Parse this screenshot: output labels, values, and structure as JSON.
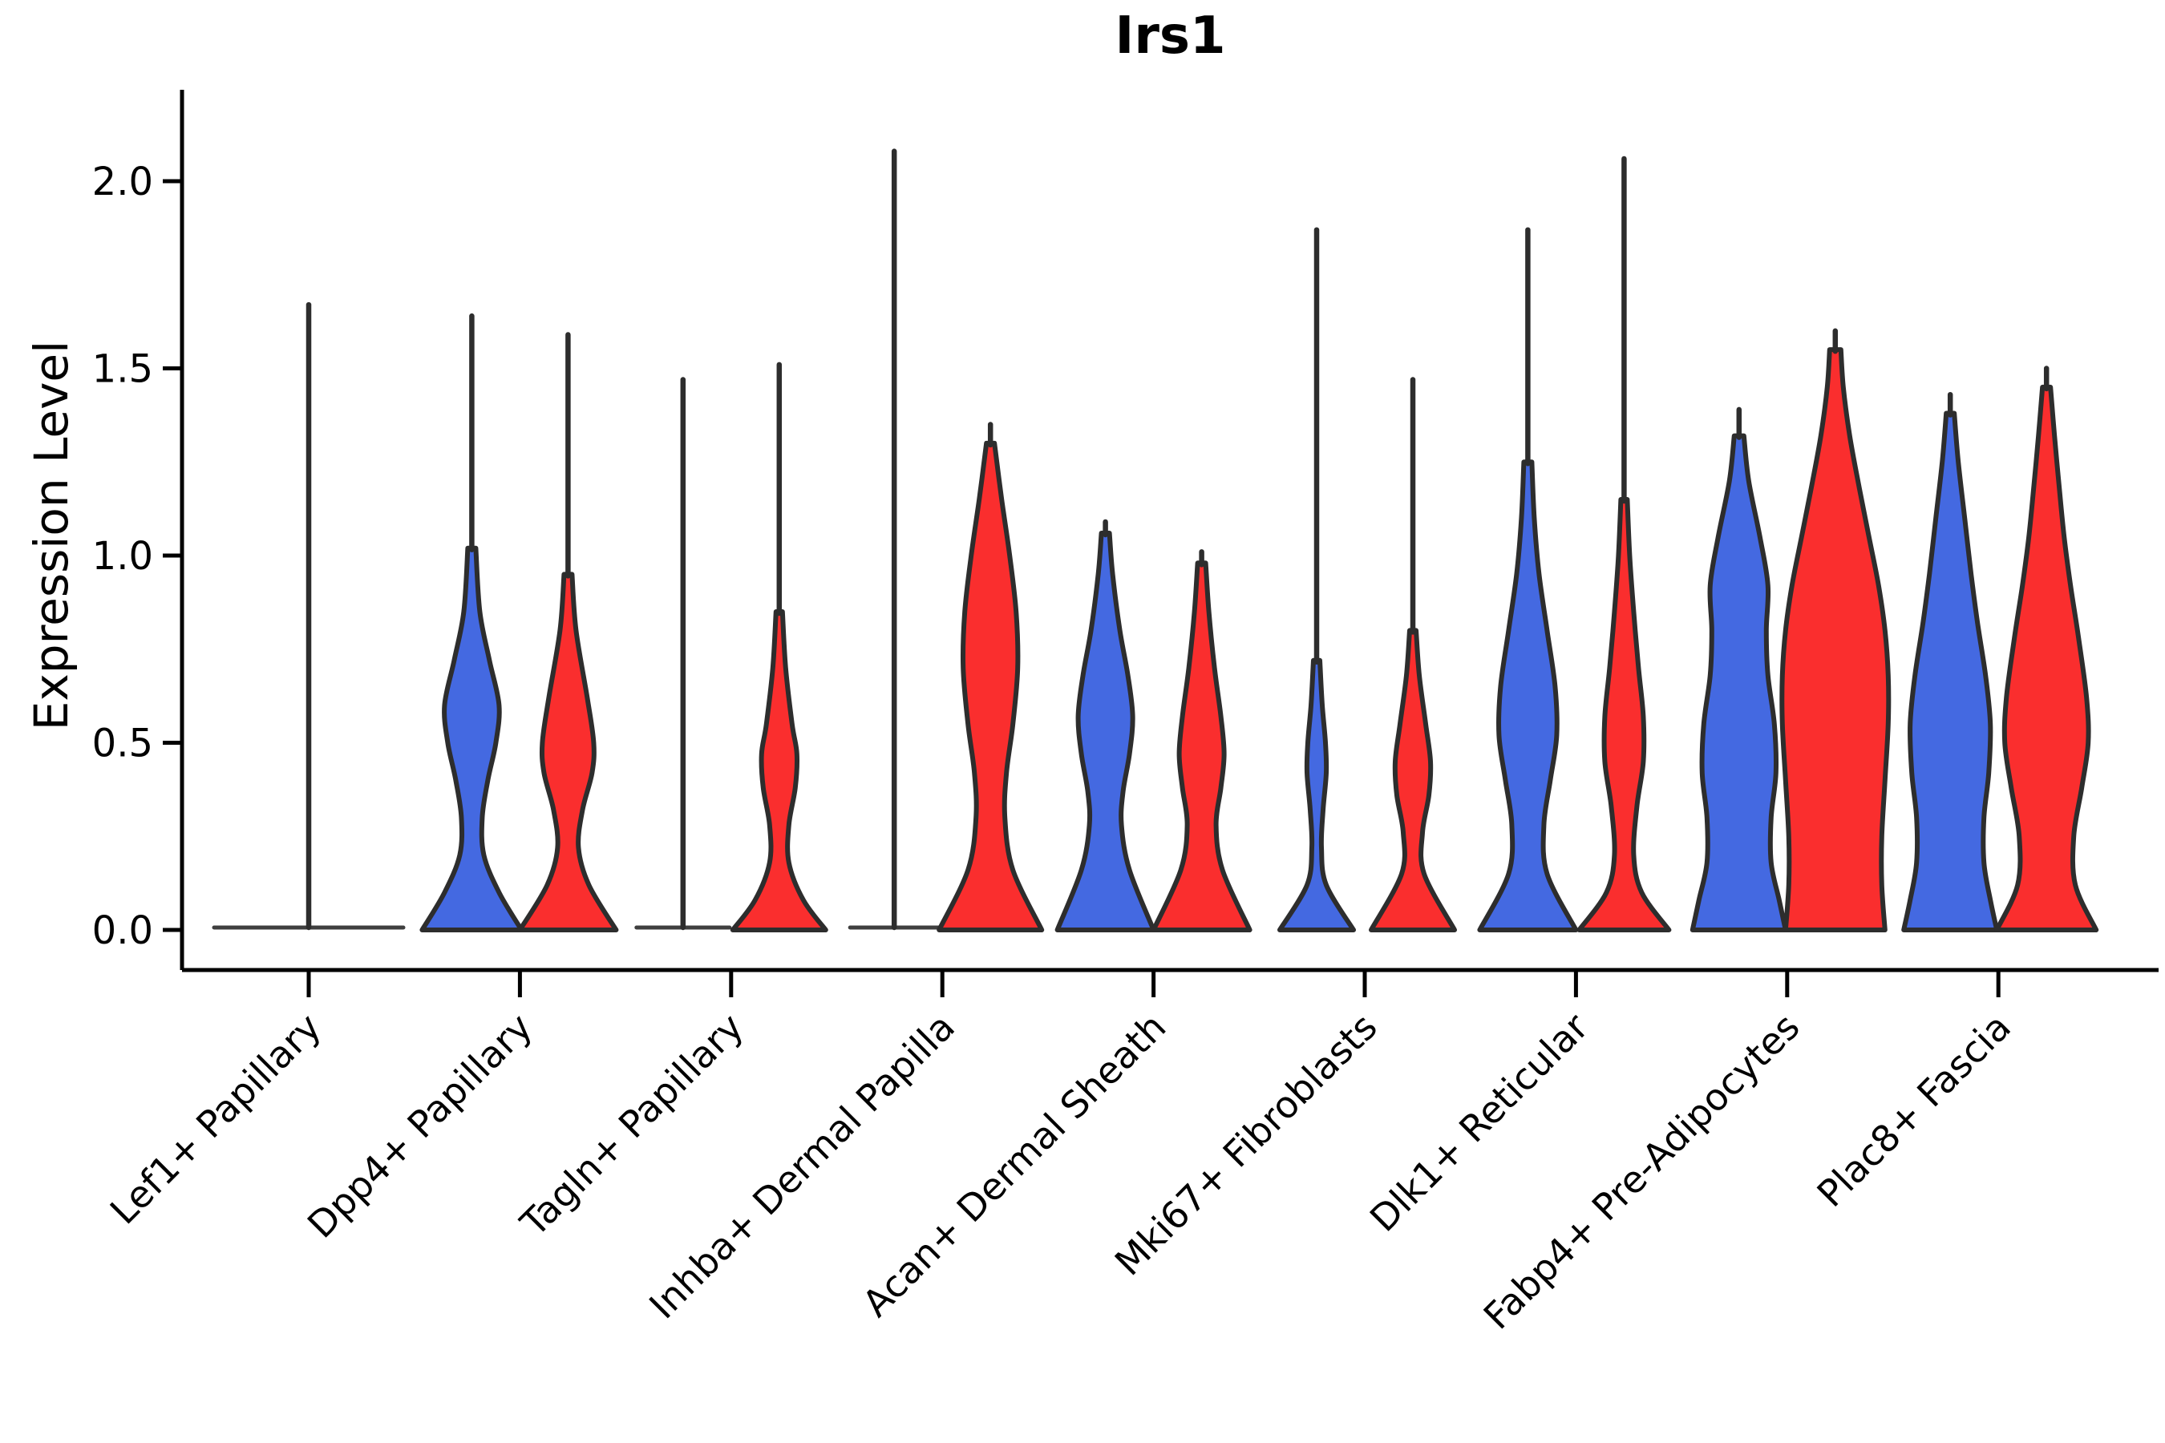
{
  "title": "Irs1",
  "y_axis": {
    "label": "Expression Level",
    "tick_labels": [
      "0.0",
      "0.5",
      "1.0",
      "1.5",
      "2.0"
    ],
    "tick_values": [
      0.0,
      0.5,
      1.0,
      1.5,
      2.0
    ]
  },
  "x_axis": {
    "categories": [
      "Lef1+ Papillary",
      "Dpp4+ Papillary",
      "Tagln+ Papillary",
      "Inhba+ Dermal Papilla",
      "Acan+ Dermal Sheath",
      "Mki67+ Fibroblasts",
      "Dlk1+ Reticular",
      "Fabp4+ Pre-Adipocytes",
      "Plac8+ Fascia"
    ]
  },
  "colors": {
    "group_blue": "#4469E1",
    "group_red": "#FA2E2E",
    "outline": "#2D2D2D",
    "flat_line": "#3F3F3F",
    "axis": "#000000"
  },
  "chart_data": {
    "type": "violin",
    "title": "Irs1",
    "xlabel": "",
    "ylabel": "Expression Level",
    "ylim": [
      0,
      2.15
    ],
    "yticks": [
      0.0,
      0.5,
      1.0,
      1.5,
      2.0
    ],
    "grid": false,
    "legend_position": "none",
    "categories": [
      "Lef1+ Papillary",
      "Dpp4+ Papillary",
      "Tagln+ Papillary",
      "Inhba+ Dermal Papilla",
      "Acan+ Dermal Sheath",
      "Mki67+ Fibroblasts",
      "Dlk1+ Reticular",
      "Fabp4+ Pre-Adipocytes",
      "Plac8+ Fascia"
    ],
    "groups": [
      {
        "name": "condition-blue",
        "color": "#4469E1"
      },
      {
        "name": "condition-red",
        "color": "#FA2E2E"
      }
    ],
    "profile_units": "pairs of [expression_value, half_width_px]; half_width is the drawn kernel-density half width",
    "violins": [
      {
        "category": "Lef1+ Papillary",
        "split": [
          {
            "group": "all",
            "type": "flat",
            "color": "#3F3F3F",
            "flat_halfwidth": 118,
            "max": 1.67,
            "align": "center"
          }
        ]
      },
      {
        "category": "Dpp4+ Papillary",
        "split": [
          {
            "group": "condition-blue",
            "type": "density",
            "color": "#4469E1",
            "max": 1.64,
            "profile": [
              [
                1.02,
                5
              ],
              [
                0.85,
                10
              ],
              [
                0.72,
                22
              ],
              [
                0.6,
                34
              ],
              [
                0.5,
                30
              ],
              [
                0.4,
                20
              ],
              [
                0.3,
                13
              ],
              [
                0.2,
                15
              ],
              [
                0.1,
                34
              ],
              [
                0,
                62
              ]
            ]
          },
          {
            "group": "condition-red",
            "type": "density",
            "color": "#FA2E2E",
            "max": 1.59,
            "profile": [
              [
                0.95,
                5
              ],
              [
                0.8,
                10
              ],
              [
                0.62,
                24
              ],
              [
                0.5,
                32
              ],
              [
                0.42,
                30
              ],
              [
                0.32,
                18
              ],
              [
                0.22,
                13
              ],
              [
                0.12,
                26
              ],
              [
                0,
                60
              ]
            ]
          }
        ]
      },
      {
        "category": "Tagln+ Papillary",
        "split": [
          {
            "group": "condition-blue",
            "type": "flat",
            "color": "#3F3F3F",
            "flat_halfwidth": 58,
            "max": 1.47
          },
          {
            "group": "condition-red",
            "type": "density",
            "color": "#FA2E2E",
            "max": 1.51,
            "profile": [
              [
                0.85,
                4
              ],
              [
                0.7,
                8
              ],
              [
                0.55,
                16
              ],
              [
                0.47,
                22
              ],
              [
                0.38,
                20
              ],
              [
                0.28,
                12
              ],
              [
                0.18,
                12
              ],
              [
                0.08,
                30
              ],
              [
                0,
                58
              ]
            ]
          }
        ]
      },
      {
        "category": "Inhba+ Dermal Papilla",
        "split": [
          {
            "group": "condition-blue",
            "type": "flat",
            "color": "#3F3F3F",
            "flat_halfwidth": 55,
            "max": 2.08
          },
          {
            "group": "condition-red",
            "type": "density",
            "color": "#FA2E2E",
            "max": 1.35,
            "profile": [
              [
                1.3,
                5
              ],
              [
                1.15,
                14
              ],
              [
                1.0,
                24
              ],
              [
                0.85,
                32
              ],
              [
                0.7,
                34
              ],
              [
                0.55,
                28
              ],
              [
                0.42,
                20
              ],
              [
                0.3,
                18
              ],
              [
                0.16,
                28
              ],
              [
                0,
                64
              ]
            ]
          }
        ]
      },
      {
        "category": "Acan+ Dermal Sheath",
        "split": [
          {
            "group": "condition-blue",
            "type": "density",
            "color": "#4469E1",
            "max": 1.09,
            "profile": [
              [
                1.06,
                5
              ],
              [
                0.95,
                9
              ],
              [
                0.8,
                18
              ],
              [
                0.68,
                28
              ],
              [
                0.57,
                34
              ],
              [
                0.47,
                30
              ],
              [
                0.37,
                22
              ],
              [
                0.28,
                20
              ],
              [
                0.16,
                30
              ],
              [
                0,
                60
              ]
            ]
          },
          {
            "group": "condition-red",
            "type": "density",
            "color": "#FA2E2E",
            "max": 1.01,
            "profile": [
              [
                0.98,
                5
              ],
              [
                0.85,
                9
              ],
              [
                0.7,
                16
              ],
              [
                0.57,
                24
              ],
              [
                0.47,
                28
              ],
              [
                0.38,
                24
              ],
              [
                0.28,
                18
              ],
              [
                0.16,
                26
              ],
              [
                0,
                60
              ]
            ]
          }
        ]
      },
      {
        "category": "Mki67+ Fibroblasts",
        "split": [
          {
            "group": "condition-blue",
            "type": "density",
            "color": "#4469E1",
            "max": 1.87,
            "profile": [
              [
                0.72,
                4
              ],
              [
                0.6,
                7
              ],
              [
                0.5,
                11
              ],
              [
                0.42,
                12
              ],
              [
                0.32,
                8
              ],
              [
                0.22,
                6
              ],
              [
                0.12,
                12
              ],
              [
                0,
                46
              ]
            ]
          },
          {
            "group": "condition-red",
            "type": "density",
            "color": "#FA2E2E",
            "max": 1.47,
            "profile": [
              [
                0.8,
                4
              ],
              [
                0.68,
                8
              ],
              [
                0.55,
                16
              ],
              [
                0.45,
                22
              ],
              [
                0.36,
                20
              ],
              [
                0.26,
                12
              ],
              [
                0.15,
                14
              ],
              [
                0,
                52
              ]
            ]
          }
        ]
      },
      {
        "category": "Dlk1+ Reticular",
        "split": [
          {
            "group": "condition-blue",
            "type": "density",
            "color": "#4469E1",
            "max": 1.87,
            "profile": [
              [
                1.25,
                5
              ],
              [
                1.1,
                8
              ],
              [
                0.95,
                14
              ],
              [
                0.8,
                24
              ],
              [
                0.65,
                34
              ],
              [
                0.52,
                36
              ],
              [
                0.4,
                28
              ],
              [
                0.28,
                20
              ],
              [
                0.15,
                24
              ],
              [
                0,
                60
              ]
            ]
          },
          {
            "group": "condition-red",
            "type": "density",
            "color": "#FA2E2E",
            "max": 2.06,
            "profile": [
              [
                1.15,
                4
              ],
              [
                1.0,
                7
              ],
              [
                0.85,
                12
              ],
              [
                0.7,
                18
              ],
              [
                0.57,
                24
              ],
              [
                0.45,
                24
              ],
              [
                0.33,
                16
              ],
              [
                0.2,
                12
              ],
              [
                0.1,
                22
              ],
              [
                0,
                56
              ]
            ]
          }
        ]
      },
      {
        "category": "Fabp4+ Pre-Adipocytes",
        "split": [
          {
            "group": "condition-blue",
            "type": "density",
            "color": "#4469E1",
            "max": 1.39,
            "profile": [
              [
                1.32,
                6
              ],
              [
                1.2,
                12
              ],
              [
                1.05,
                26
              ],
              [
                0.92,
                36
              ],
              [
                0.8,
                34
              ],
              [
                0.68,
                36
              ],
              [
                0.55,
                44
              ],
              [
                0.42,
                46
              ],
              [
                0.3,
                40
              ],
              [
                0.18,
                40
              ],
              [
                0.08,
                50
              ],
              [
                0,
                58
              ]
            ]
          },
          {
            "group": "condition-red",
            "type": "density",
            "color": "#FA2E2E",
            "max": 1.6,
            "profile": [
              [
                1.55,
                7
              ],
              [
                1.45,
                10
              ],
              [
                1.32,
                18
              ],
              [
                1.18,
                30
              ],
              [
                1.05,
                42
              ],
              [
                0.92,
                54
              ],
              [
                0.8,
                62
              ],
              [
                0.68,
                66
              ],
              [
                0.55,
                66
              ],
              [
                0.4,
                62
              ],
              [
                0.25,
                58
              ],
              [
                0.12,
                58
              ],
              [
                0,
                62
              ]
            ]
          }
        ]
      },
      {
        "category": "Plac8+ Fascia",
        "split": [
          {
            "group": "condition-blue",
            "type": "density",
            "color": "#4469E1",
            "max": 1.43,
            "profile": [
              [
                1.38,
                5
              ],
              [
                1.25,
                10
              ],
              [
                1.1,
                18
              ],
              [
                0.95,
                26
              ],
              [
                0.82,
                34
              ],
              [
                0.68,
                44
              ],
              [
                0.55,
                50
              ],
              [
                0.42,
                48
              ],
              [
                0.3,
                42
              ],
              [
                0.18,
                42
              ],
              [
                0.08,
                50
              ],
              [
                0,
                58
              ]
            ]
          },
          {
            "group": "condition-red",
            "type": "density",
            "color": "#FA2E2E",
            "max": 1.5,
            "profile": [
              [
                1.45,
                5
              ],
              [
                1.32,
                10
              ],
              [
                1.18,
                16
              ],
              [
                1.05,
                22
              ],
              [
                0.92,
                30
              ],
              [
                0.78,
                40
              ],
              [
                0.62,
                50
              ],
              [
                0.5,
                52
              ],
              [
                0.38,
                44
              ],
              [
                0.25,
                34
              ],
              [
                0.12,
                36
              ],
              [
                0,
                62
              ]
            ]
          }
        ]
      }
    ]
  }
}
